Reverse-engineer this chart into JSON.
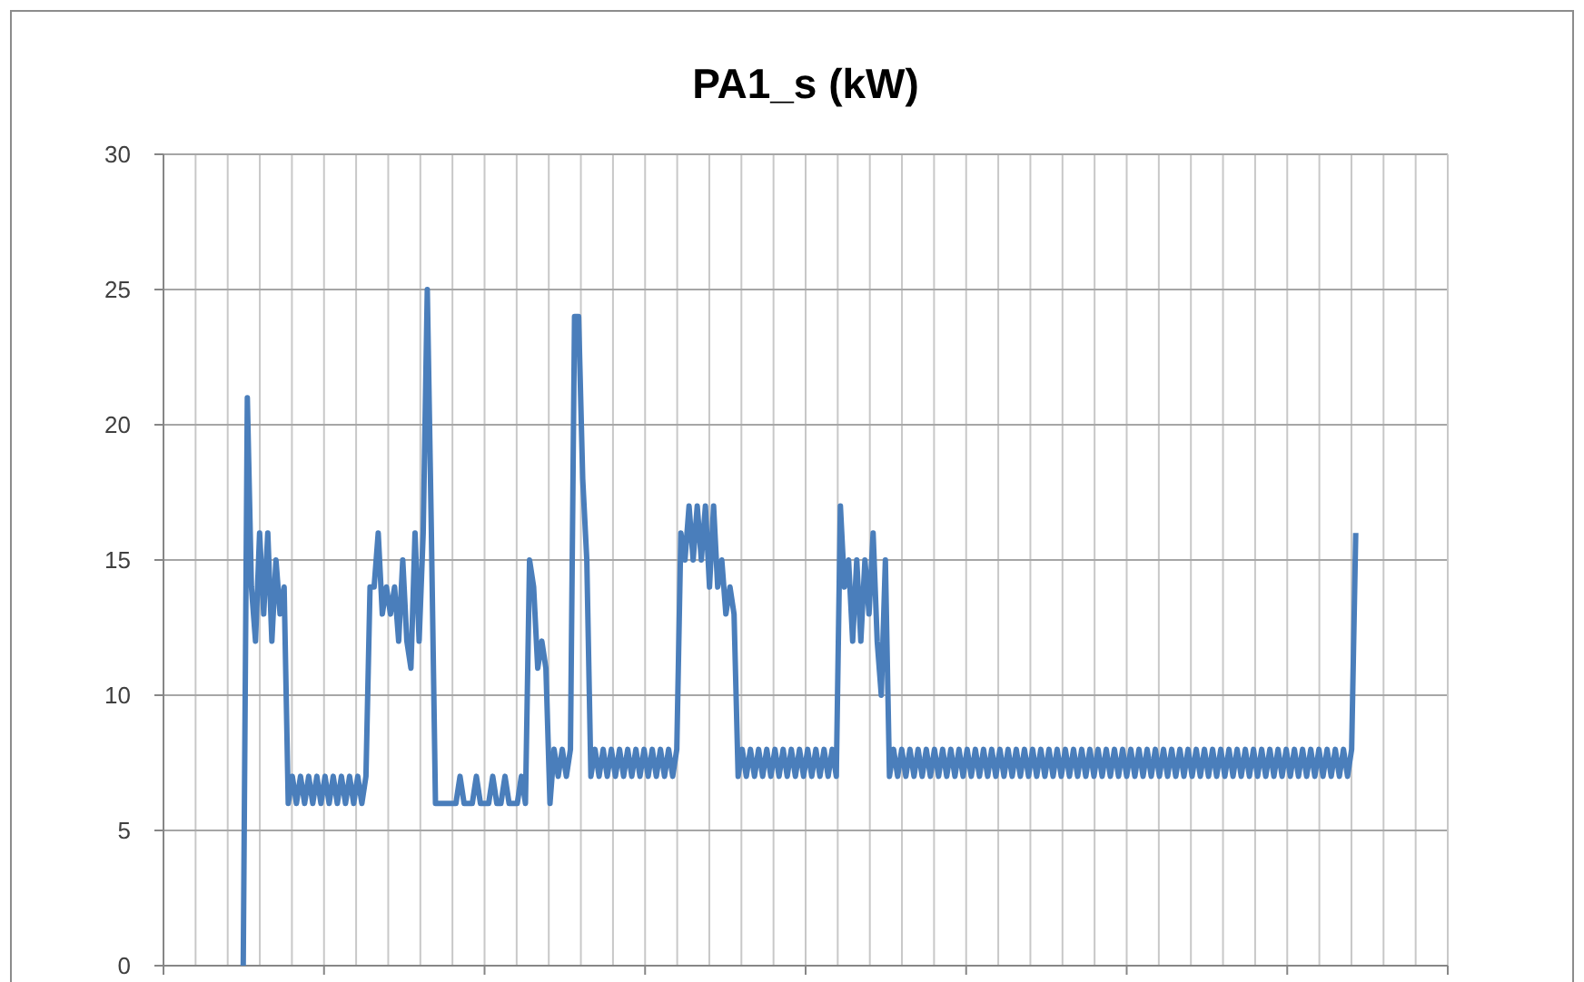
{
  "chart_data": {
    "type": "line",
    "title": "PA1_s (kW)",
    "categories": [
      null,
      null,
      null,
      null,
      null,
      null,
      null,
      null,
      null,
      null,
      null,
      null,
      null,
      null,
      null,
      null,
      null,
      null,
      null,
      null,
      null,
      null,
      null,
      null,
      null,
      null,
      null,
      null,
      null,
      null,
      null,
      null,
      null,
      null,
      null,
      null,
      null,
      null,
      null,
      null,
      null,
      null,
      null,
      null,
      null,
      null,
      null,
      null,
      null,
      null,
      null,
      null,
      null,
      null,
      null,
      null,
      null,
      null,
      null,
      null,
      null,
      null,
      null,
      null,
      null,
      null,
      null,
      null,
      null,
      null,
      null,
      null,
      null,
      null,
      null,
      null,
      null,
      null,
      null,
      null,
      null,
      null,
      null,
      null,
      null,
      null,
      null,
      null,
      null,
      null,
      null,
      null,
      null,
      null,
      null,
      null,
      null,
      null,
      null,
      null,
      null,
      null,
      null,
      null,
      null,
      null,
      null,
      null,
      null,
      null,
      null,
      null,
      null,
      null,
      null,
      null,
      null,
      null,
      null,
      null,
      null,
      null,
      null,
      null,
      null,
      null,
      null,
      null,
      null,
      null,
      null,
      null,
      null,
      null,
      null,
      null,
      null,
      null,
      null,
      null,
      null,
      null,
      null,
      null,
      null,
      null,
      null,
      null,
      null,
      null,
      null,
      null,
      null,
      null,
      null,
      null,
      null,
      null,
      null,
      null,
      null,
      null,
      null,
      null,
      null,
      null,
      null,
      null,
      null,
      null,
      null,
      null,
      null,
      null,
      null,
      null,
      null,
      null,
      null,
      null,
      null,
      null,
      null,
      null,
      null,
      null,
      null,
      null,
      null,
      null,
      null,
      null,
      null,
      null,
      null,
      null,
      null,
      null,
      null,
      null,
      null,
      null,
      null,
      null,
      null,
      null,
      null,
      null,
      null,
      null,
      null,
      null,
      null,
      null,
      null,
      null,
      null,
      null,
      null,
      null,
      null,
      null,
      null,
      null,
      null,
      null,
      null,
      null,
      null,
      null,
      null,
      null,
      null,
      null,
      null,
      null,
      null,
      null,
      null,
      null,
      null,
      null,
      null,
      null,
      null,
      null,
      null,
      null,
      null,
      null,
      null,
      null,
      null,
      null,
      null,
      null,
      null,
      null,
      null,
      null,
      null,
      null,
      null,
      null,
      null,
      null,
      null,
      null,
      null,
      null,
      null,
      null,
      null,
      null,
      null,
      null,
      null,
      null,
      null,
      null,
      null,
      null,
      null,
      null,
      null,
      null,
      null,
      null,
      null,
      null,
      null,
      null,
      null,
      null,
      null,
      null,
      null,
      null,
      null,
      null,
      null,
      null,
      null,
      null,
      null,
      null,
      null,
      null,
      null,
      null,
      null,
      null,
      null,
      null
    ],
    "series": [
      {
        "color": "#4a7ebb",
        "values": [
          null,
          null,
          null,
          null,
          null,
          null,
          null,
          null,
          null,
          null,
          null,
          null,
          null,
          null,
          null,
          null,
          null,
          null,
          null,
          0,
          21,
          14,
          12,
          16,
          13,
          16,
          12,
          15,
          13,
          14,
          6,
          7,
          6,
          7,
          6,
          7,
          6,
          7,
          6,
          7,
          6,
          7,
          6,
          7,
          6,
          7,
          6,
          7,
          6,
          7,
          14,
          14,
          16,
          13,
          14,
          13,
          14,
          12,
          15,
          12,
          11,
          16,
          12,
          16,
          25,
          16,
          6,
          6,
          6,
          6,
          6,
          6,
          7,
          6,
          6,
          6,
          7,
          6,
          6,
          6,
          7,
          6,
          6,
          7,
          6,
          6,
          6,
          7,
          6,
          15,
          14,
          11,
          12,
          11,
          6,
          8,
          7,
          8,
          7,
          8,
          24,
          24,
          18,
          15,
          7,
          8,
          7,
          8,
          7,
          8,
          7,
          8,
          7,
          8,
          7,
          8,
          7,
          8,
          7,
          8,
          7,
          8,
          7,
          8,
          7,
          8,
          16,
          15,
          17,
          15,
          17,
          15,
          17,
          14,
          17,
          14,
          15,
          13,
          14,
          13,
          7,
          8,
          7,
          8,
          7,
          8,
          7,
          8,
          7,
          8,
          7,
          8,
          7,
          8,
          7,
          8,
          7,
          8,
          7,
          8,
          7,
          8,
          7,
          8,
          7,
          17,
          14,
          15,
          12,
          15,
          12,
          15,
          13,
          16,
          12,
          10,
          15,
          7,
          8,
          7,
          8,
          7,
          8,
          7,
          8,
          7,
          8,
          7,
          8,
          7,
          8,
          7,
          8,
          7,
          8,
          7,
          8,
          7,
          8,
          7,
          8,
          7,
          8,
          7,
          8,
          7,
          8,
          7,
          8,
          7,
          8,
          7,
          8,
          7,
          8,
          7,
          8,
          7,
          8,
          7,
          8,
          7,
          8,
          7,
          8,
          7,
          8,
          7,
          8,
          7,
          8,
          7,
          8,
          7,
          8,
          7,
          8,
          7,
          8,
          7,
          8,
          7,
          8,
          7,
          8,
          7,
          8,
          7,
          8,
          7,
          8,
          7,
          8,
          7,
          8,
          7,
          8,
          7,
          8,
          7,
          8,
          7,
          8,
          7,
          8,
          7,
          8,
          7,
          8,
          7,
          8,
          7,
          8,
          7,
          8,
          7,
          8,
          7,
          8,
          7,
          8,
          7,
          8,
          7,
          8,
          7,
          8,
          7,
          8,
          7,
          8,
          16,
          null,
          null,
          null,
          null,
          null,
          null,
          null,
          null,
          null,
          null,
          null,
          null,
          null,
          null,
          null,
          null,
          null,
          null,
          null,
          null,
          null,
          null
        ]
      }
    ],
    "ylim": [
      0,
      30
    ],
    "yticks": [
      0,
      5,
      10,
      15,
      20,
      25,
      30
    ],
    "grid": true,
    "marker": "none",
    "line_style": "solid"
  }
}
